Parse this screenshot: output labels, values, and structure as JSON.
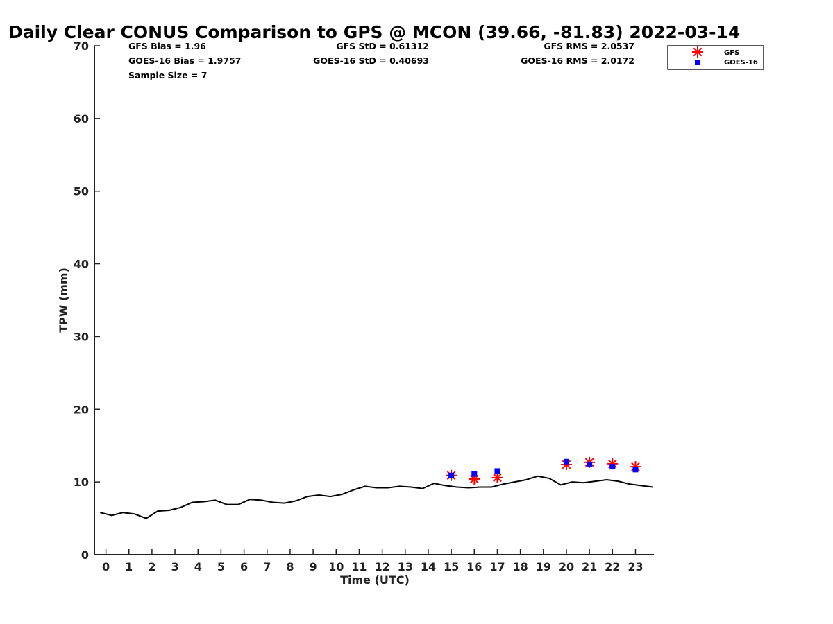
{
  "chart_data": {
    "type": "line",
    "title": "Daily Clear CONUS Comparison to GPS @ MCON (39.66, -81.83) 2022-03-14",
    "xlabel": "Time (UTC)",
    "ylabel": "TPW (mm)",
    "xlim": [
      -0.5,
      23.8
    ],
    "ylim": [
      0,
      70
    ],
    "x_ticks": [
      0,
      1,
      2,
      3,
      4,
      5,
      6,
      7,
      8,
      9,
      10,
      11,
      12,
      13,
      14,
      15,
      16,
      17,
      18,
      19,
      20,
      21,
      22,
      23
    ],
    "y_ticks": [
      0,
      10,
      20,
      30,
      40,
      50,
      60,
      70
    ],
    "grid": false,
    "legend_position": "top-right",
    "stats": {
      "gfs_bias": "GFS Bias = 1.96",
      "goes_bias": "GOES-16 Bias = 1.9757",
      "sample_size": "Sample Size = 7",
      "gfs_std": "GFS StD = 0.61312",
      "goes_std": "GOES-16 StD = 0.40693",
      "gfs_rms": "GFS RMS = 2.0537",
      "goes_rms": "GOES-16 RMS = 2.0172"
    },
    "series": [
      {
        "kind": "line",
        "color": "#000000",
        "x": [
          -0.25,
          0.25,
          0.75,
          1.25,
          1.75,
          2.25,
          2.75,
          3.25,
          3.75,
          4.25,
          4.75,
          5.25,
          5.75,
          6.25,
          6.75,
          7.25,
          7.75,
          8.25,
          8.75,
          9.25,
          9.75,
          10.25,
          10.75,
          11.25,
          11.75,
          12.25,
          12.75,
          13.25,
          13.75,
          14.25,
          14.75,
          15.25,
          15.75,
          16.25,
          16.75,
          17.25,
          17.75,
          18.25,
          18.75,
          19.25,
          19.75,
          20.25,
          20.75,
          21.25,
          21.75,
          22.25,
          22.75,
          23.25,
          23.75
        ],
        "y": [
          5.8,
          5.4,
          5.8,
          5.6,
          5.0,
          6.0,
          6.1,
          6.5,
          7.2,
          7.3,
          7.5,
          6.9,
          6.9,
          7.6,
          7.5,
          7.2,
          7.1,
          7.4,
          8.0,
          8.2,
          8.0,
          8.3,
          8.9,
          9.4,
          9.2,
          9.2,
          9.4,
          9.3,
          9.1,
          9.8,
          9.5,
          9.3,
          9.2,
          9.3,
          9.3,
          9.7,
          10.0,
          10.3,
          10.8,
          10.5,
          9.6,
          10.0,
          9.9,
          10.1,
          10.3,
          10.1,
          9.7,
          9.5,
          9.3
        ]
      },
      {
        "name": "GFS",
        "kind": "marker",
        "marker": "asterisk",
        "color": "#ff0000",
        "x": [
          15,
          16,
          17,
          20,
          21,
          22,
          23
        ],
        "y": [
          10.9,
          10.4,
          10.6,
          12.4,
          12.7,
          12.5,
          12.1
        ]
      },
      {
        "name": "GOES-16",
        "kind": "marker",
        "marker": "square",
        "color": "#0000ff",
        "x": [
          15,
          16,
          17,
          20,
          21,
          22,
          23
        ],
        "y": [
          10.9,
          11.1,
          11.5,
          12.8,
          12.4,
          12.1,
          11.7
        ]
      }
    ]
  }
}
